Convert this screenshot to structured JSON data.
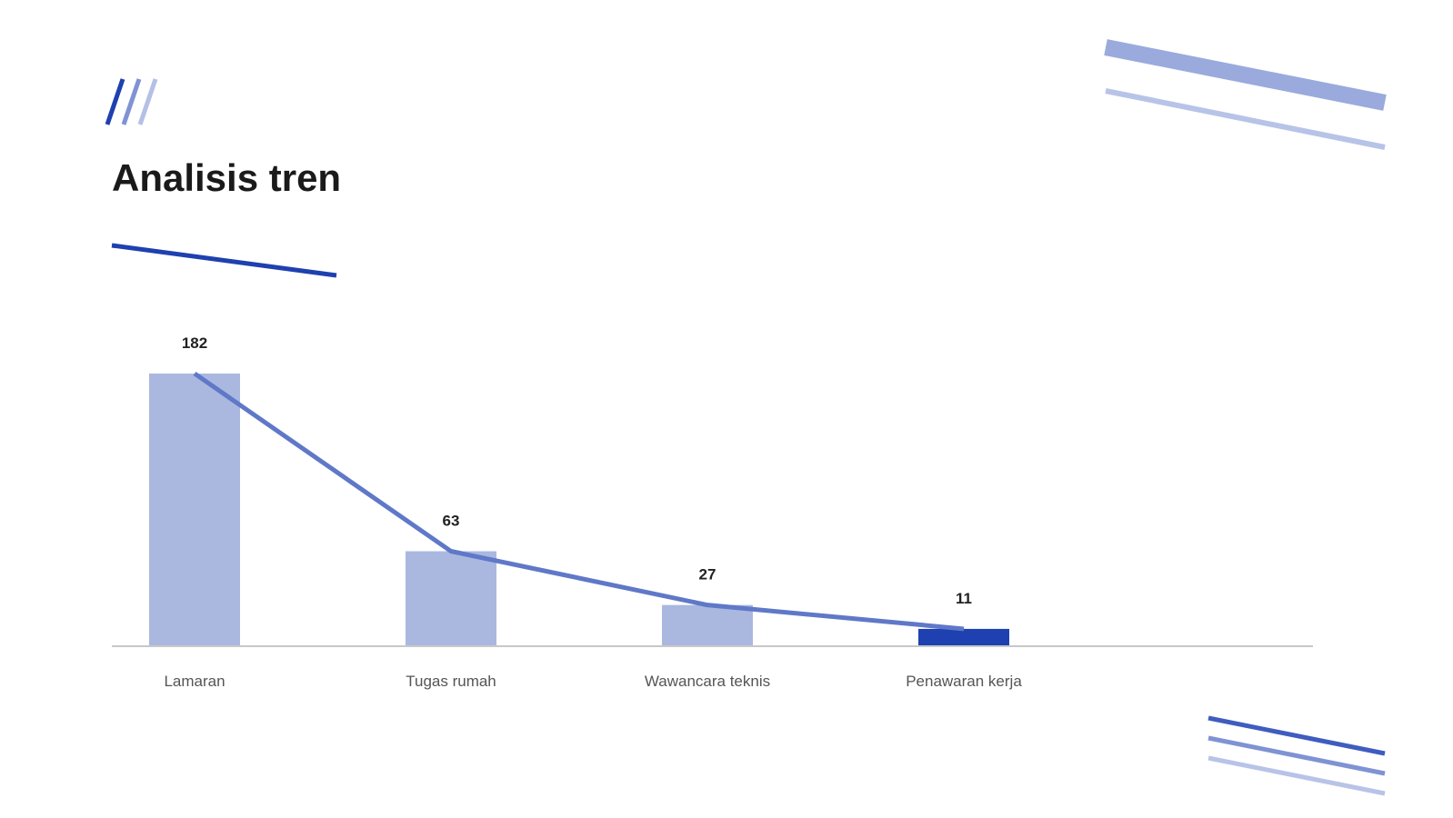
{
  "chart_data": {
    "type": "bar",
    "title": "Analisis tren",
    "categories": [
      "Lamaran",
      "Tugas rumah",
      "Wawancara teknis",
      "Penawaran kerja"
    ],
    "values": [
      182,
      63,
      27,
      11
    ],
    "colors": [
      "#aab8e0",
      "#aab8e0",
      "#aab8e0",
      "#1e40b0"
    ],
    "line_color": "#5f78c8"
  }
}
